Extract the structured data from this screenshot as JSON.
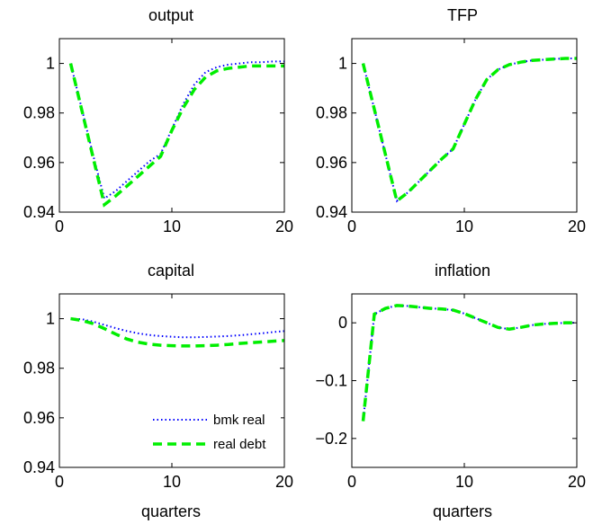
{
  "chart_data": [
    {
      "type": "line",
      "title": "output",
      "xlabel": "",
      "xlim": [
        0,
        20
      ],
      "ylim": [
        0.94,
        1.01
      ],
      "xticks": [
        0,
        10,
        20
      ],
      "yticks": [
        0.94,
        0.96,
        0.98,
        1
      ],
      "ytick_labels": [
        "0.94",
        "0.96",
        "0.98",
        "1"
      ],
      "series": [
        {
          "name": "bmk real",
          "color": "#0000ff",
          "style": "dotted",
          "x": [
            1,
            2,
            3,
            4,
            5,
            6,
            7,
            8,
            9,
            10,
            11,
            12,
            13,
            14,
            15,
            16,
            17,
            18,
            19,
            20
          ],
          "y": [
            1.0,
            0.9815,
            0.963,
            0.9455,
            0.9485,
            0.9525,
            0.9565,
            0.9605,
            0.9635,
            0.9735,
            0.9835,
            0.9915,
            0.9965,
            0.9985,
            0.9995,
            1.0,
            1.0005,
            1.0005,
            1.0008,
            1.0008
          ]
        },
        {
          "name": "real debt",
          "color": "#00ee00",
          "style": "dashed",
          "x": [
            1,
            2,
            3,
            4,
            5,
            6,
            7,
            8,
            9,
            10,
            11,
            12,
            13,
            14,
            15,
            16,
            17,
            18,
            19,
            20
          ],
          "y": [
            1.0,
            0.981,
            0.962,
            0.943,
            0.9465,
            0.9505,
            0.9545,
            0.9585,
            0.9625,
            0.973,
            0.982,
            0.9895,
            0.9945,
            0.997,
            0.998,
            0.9985,
            0.999,
            0.999,
            0.999,
            0.999
          ]
        }
      ]
    },
    {
      "type": "line",
      "title": "TFP",
      "xlabel": "",
      "xlim": [
        0,
        20
      ],
      "ylim": [
        0.94,
        1.01
      ],
      "xticks": [
        0,
        10,
        20
      ],
      "yticks": [
        0.94,
        0.96,
        0.98,
        1
      ],
      "ytick_labels": [
        "0.94",
        "0.96",
        "0.98",
        "1"
      ],
      "series": [
        {
          "name": "bmk real",
          "color": "#0000ff",
          "style": "dotted",
          "x": [
            1,
            2,
            3,
            4,
            5,
            6,
            7,
            8,
            9,
            10,
            11,
            12,
            13,
            14,
            15,
            16,
            17,
            18,
            19,
            20
          ],
          "y": [
            1.0,
            0.9815,
            0.963,
            0.9445,
            0.948,
            0.9525,
            0.957,
            0.9615,
            0.9655,
            0.9755,
            0.9855,
            0.9935,
            0.9975,
            0.9995,
            1.0005,
            1.0012,
            1.0015,
            1.0018,
            1.002,
            1.002
          ]
        },
        {
          "name": "real debt",
          "color": "#00ee00",
          "style": "dashed",
          "x": [
            1,
            2,
            3,
            4,
            5,
            6,
            7,
            8,
            9,
            10,
            11,
            12,
            13,
            14,
            15,
            16,
            17,
            18,
            19,
            20
          ],
          "y": [
            1.0,
            0.9815,
            0.963,
            0.9445,
            0.948,
            0.9525,
            0.957,
            0.9615,
            0.9655,
            0.9755,
            0.9855,
            0.9935,
            0.9975,
            0.9995,
            1.0005,
            1.0012,
            1.0015,
            1.0018,
            1.002,
            1.002
          ]
        }
      ]
    },
    {
      "type": "line",
      "title": "capital",
      "xlabel": "quarters",
      "xlim": [
        0,
        20
      ],
      "ylim": [
        0.94,
        1.01
      ],
      "xticks": [
        0,
        10,
        20
      ],
      "yticks": [
        0.94,
        0.96,
        0.98,
        1
      ],
      "ytick_labels": [
        "0.94",
        "0.96",
        "0.98",
        "1"
      ],
      "legend": {
        "position": "bottom-right",
        "entries": [
          "bmk real",
          "real debt"
        ]
      },
      "series": [
        {
          "name": "bmk real",
          "color": "#0000ff",
          "style": "dotted",
          "x": [
            1,
            2,
            3,
            4,
            5,
            6,
            7,
            8,
            9,
            10,
            11,
            12,
            13,
            14,
            15,
            16,
            17,
            18,
            19,
            20
          ],
          "y": [
            1.0,
            0.9998,
            0.9988,
            0.9975,
            0.9962,
            0.995,
            0.9941,
            0.9934,
            0.993,
            0.9927,
            0.9925,
            0.9925,
            0.9926,
            0.9928,
            0.993,
            0.9933,
            0.9937,
            0.9941,
            0.9946,
            0.995
          ]
        },
        {
          "name": "real debt",
          "color": "#00ee00",
          "style": "dashed",
          "x": [
            1,
            2,
            3,
            4,
            5,
            6,
            7,
            8,
            9,
            10,
            11,
            12,
            13,
            14,
            15,
            16,
            17,
            18,
            19,
            20
          ],
          "y": [
            1.0,
            0.9993,
            0.998,
            0.996,
            0.9938,
            0.9918,
            0.9905,
            0.9897,
            0.9893,
            0.9891,
            0.989,
            0.989,
            0.9891,
            0.9893,
            0.9896,
            0.99,
            0.9903,
            0.9906,
            0.9909,
            0.9912
          ]
        }
      ]
    },
    {
      "type": "line",
      "title": "inflation",
      "xlabel": "quarters",
      "xlim": [
        0,
        20
      ],
      "ylim": [
        -0.25,
        0.05
      ],
      "xticks": [
        0,
        10,
        20
      ],
      "yticks": [
        -0.2,
        -0.1,
        0
      ],
      "ytick_labels": [
        "−0.2",
        "−0.1",
        "0"
      ],
      "series": [
        {
          "name": "bmk real",
          "color": "#0000ff",
          "style": "dotted",
          "x": [
            1,
            2,
            3,
            4,
            5,
            6,
            7,
            8,
            9,
            10,
            11,
            12,
            13,
            14,
            15,
            16,
            17,
            18,
            19,
            20
          ],
          "y": [
            -0.17,
            0.015,
            0.025,
            0.03,
            0.029,
            0.027,
            0.025,
            0.024,
            0.022,
            0.016,
            0.008,
            0.0,
            -0.008,
            -0.011,
            -0.008,
            -0.004,
            -0.002,
            -0.001,
            0.0,
            0.0
          ]
        },
        {
          "name": "real debt",
          "color": "#00ee00",
          "style": "dashed",
          "x": [
            1,
            2,
            3,
            4,
            5,
            6,
            7,
            8,
            9,
            10,
            11,
            12,
            13,
            14,
            15,
            16,
            17,
            18,
            19,
            20
          ],
          "y": [
            -0.17,
            0.015,
            0.025,
            0.03,
            0.029,
            0.027,
            0.025,
            0.024,
            0.022,
            0.016,
            0.008,
            0.0,
            -0.008,
            -0.011,
            -0.008,
            -0.004,
            -0.002,
            -0.001,
            0.0,
            0.0
          ]
        }
      ]
    }
  ]
}
